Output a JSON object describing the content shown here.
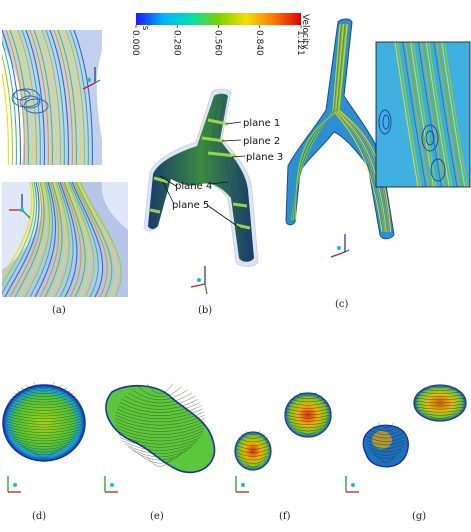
{
  "colorbar": {
    "unit": "m/s",
    "title": "Velocity",
    "ticks": [
      "0.000",
      "0.280",
      "0.560",
      "0.840",
      "1.121"
    ],
    "colors": [
      "#1a1aff",
      "#00b4ff",
      "#00e0b0",
      "#7ad400",
      "#f0e000",
      "#ff7a00",
      "#e00000"
    ]
  },
  "planes": [
    "plane 1",
    "plane 2",
    "plane 3",
    "plane 4",
    "plane 5"
  ],
  "panels": [
    "(a)",
    "(b)",
    "(c)",
    "(d)",
    "(e)",
    "(f)",
    "(g)"
  ]
}
